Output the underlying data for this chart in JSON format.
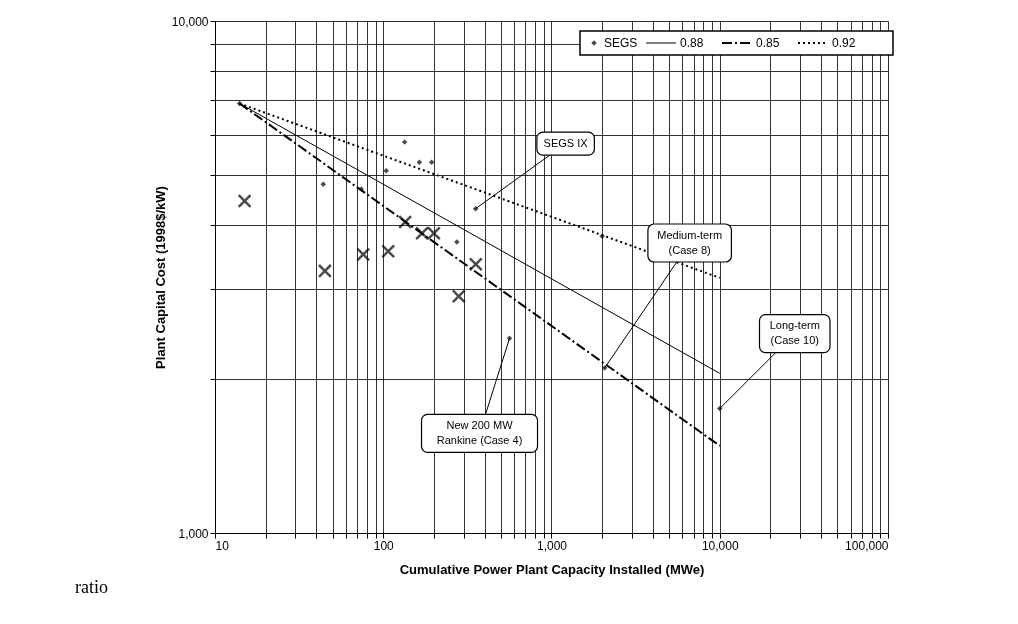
{
  "chart_data": {
    "type": "scatter",
    "xlabel": "Cumulative Power Plant Capacity Installed (MWe)",
    "ylabel": "Plant Capital Cost (1998$/kW)",
    "log": "xy",
    "grid": true,
    "legend": "top right",
    "xlim": [
      10,
      100000
    ],
    "ylim": [
      1000,
      10000
    ],
    "xticks": [
      {
        "value": 10,
        "label": "10"
      },
      {
        "value": 20,
        "label": null
      },
      {
        "value": 30,
        "label": null
      },
      {
        "value": 40,
        "label": null
      },
      {
        "value": 50,
        "label": null
      },
      {
        "value": 60,
        "label": null
      },
      {
        "value": 70,
        "label": null
      },
      {
        "value": 80,
        "label": null
      },
      {
        "value": 90,
        "label": null
      },
      {
        "value": 100,
        "label": "100"
      },
      {
        "value": 200,
        "label": null
      },
      {
        "value": 300,
        "label": null
      },
      {
        "value": 400,
        "label": null
      },
      {
        "value": 500,
        "label": null
      },
      {
        "value": 600,
        "label": null
      },
      {
        "value": 700,
        "label": null
      },
      {
        "value": 800,
        "label": null
      },
      {
        "value": 900,
        "label": null
      },
      {
        "value": 1000,
        "label": "1,000"
      },
      {
        "value": 2000,
        "label": null
      },
      {
        "value": 3000,
        "label": null
      },
      {
        "value": 4000,
        "label": null
      },
      {
        "value": 5000,
        "label": null
      },
      {
        "value": 6000,
        "label": null
      },
      {
        "value": 7000,
        "label": null
      },
      {
        "value": 8000,
        "label": null
      },
      {
        "value": 9000,
        "label": null
      },
      {
        "value": 10000,
        "label": "10,000"
      },
      {
        "value": 20000,
        "label": null
      },
      {
        "value": 30000,
        "label": null
      },
      {
        "value": 40000,
        "label": null
      },
      {
        "value": 50000,
        "label": null
      },
      {
        "value": 60000,
        "label": null
      },
      {
        "value": 70000,
        "label": null
      },
      {
        "value": 80000,
        "label": null
      },
      {
        "value": 90000,
        "label": null
      },
      {
        "value": 100000,
        "label": "100,000"
      }
    ],
    "yticks": [
      {
        "value": 1000,
        "label": "1,000"
      },
      {
        "value": 2000,
        "label": null
      },
      {
        "value": 3000,
        "label": null
      },
      {
        "value": 4000,
        "label": null
      },
      {
        "value": 5000,
        "label": null
      },
      {
        "value": 6000,
        "label": null
      },
      {
        "value": 7000,
        "label": null
      },
      {
        "value": 8000,
        "label": null
      },
      {
        "value": 9000,
        "label": null
      },
      {
        "value": 10000,
        "label": "10,000"
      }
    ],
    "series": [
      {
        "name": "SEGS",
        "marker": "diamond",
        "color": "#000000",
        "x": [
          14,
          44,
          74,
          104,
          134,
          164,
          194,
          274,
          354,
          563,
          2000,
          2070,
          10000
        ],
        "values": [
          6900,
          4800,
          4700,
          5100,
          5800,
          5300,
          5300,
          3700,
          4300,
          2400,
          3800,
          2100,
          1750
        ]
      },
      {
        "marker": "cross",
        "color": "#000000",
        "x": [
          15,
          45,
          76,
          107,
          135,
          170,
          200,
          281,
          355
        ],
        "values": [
          4450,
          3250,
          3500,
          3550,
          4050,
          3850,
          3850,
          2900,
          3350
        ]
      },
      {
        "name": "0.88",
        "type": "line",
        "line_style": "solid",
        "color": "#000000",
        "x": [
          14,
          10000
        ],
        "values": [
          6900,
          2050
        ]
      },
      {
        "name": "0.85",
        "type": "line",
        "line_style": "dashed",
        "color": "#000000",
        "x": [
          14,
          10000
        ],
        "values": [
          6900,
          1480
        ]
      },
      {
        "name": "0.92",
        "type": "line",
        "line_style": "dotted",
        "color": "#000000",
        "x": [
          14,
          10000
        ],
        "values": [
          6900,
          3150
        ]
      }
    ],
    "annotations": [
      {
        "text": "SEGS IX",
        "x": 354,
        "y": 4300
      },
      {
        "text": "Medium-term\n(Case 8)",
        "x": 2070,
        "y": 2100
      },
      {
        "text": "Long-term\n(Case 10)",
        "x": 10000,
        "y": 1750
      },
      {
        "text": "New 200 MW\nRankine (Case 4)",
        "x": 563,
        "y": 2400
      },
      "ratio"
    ]
  }
}
